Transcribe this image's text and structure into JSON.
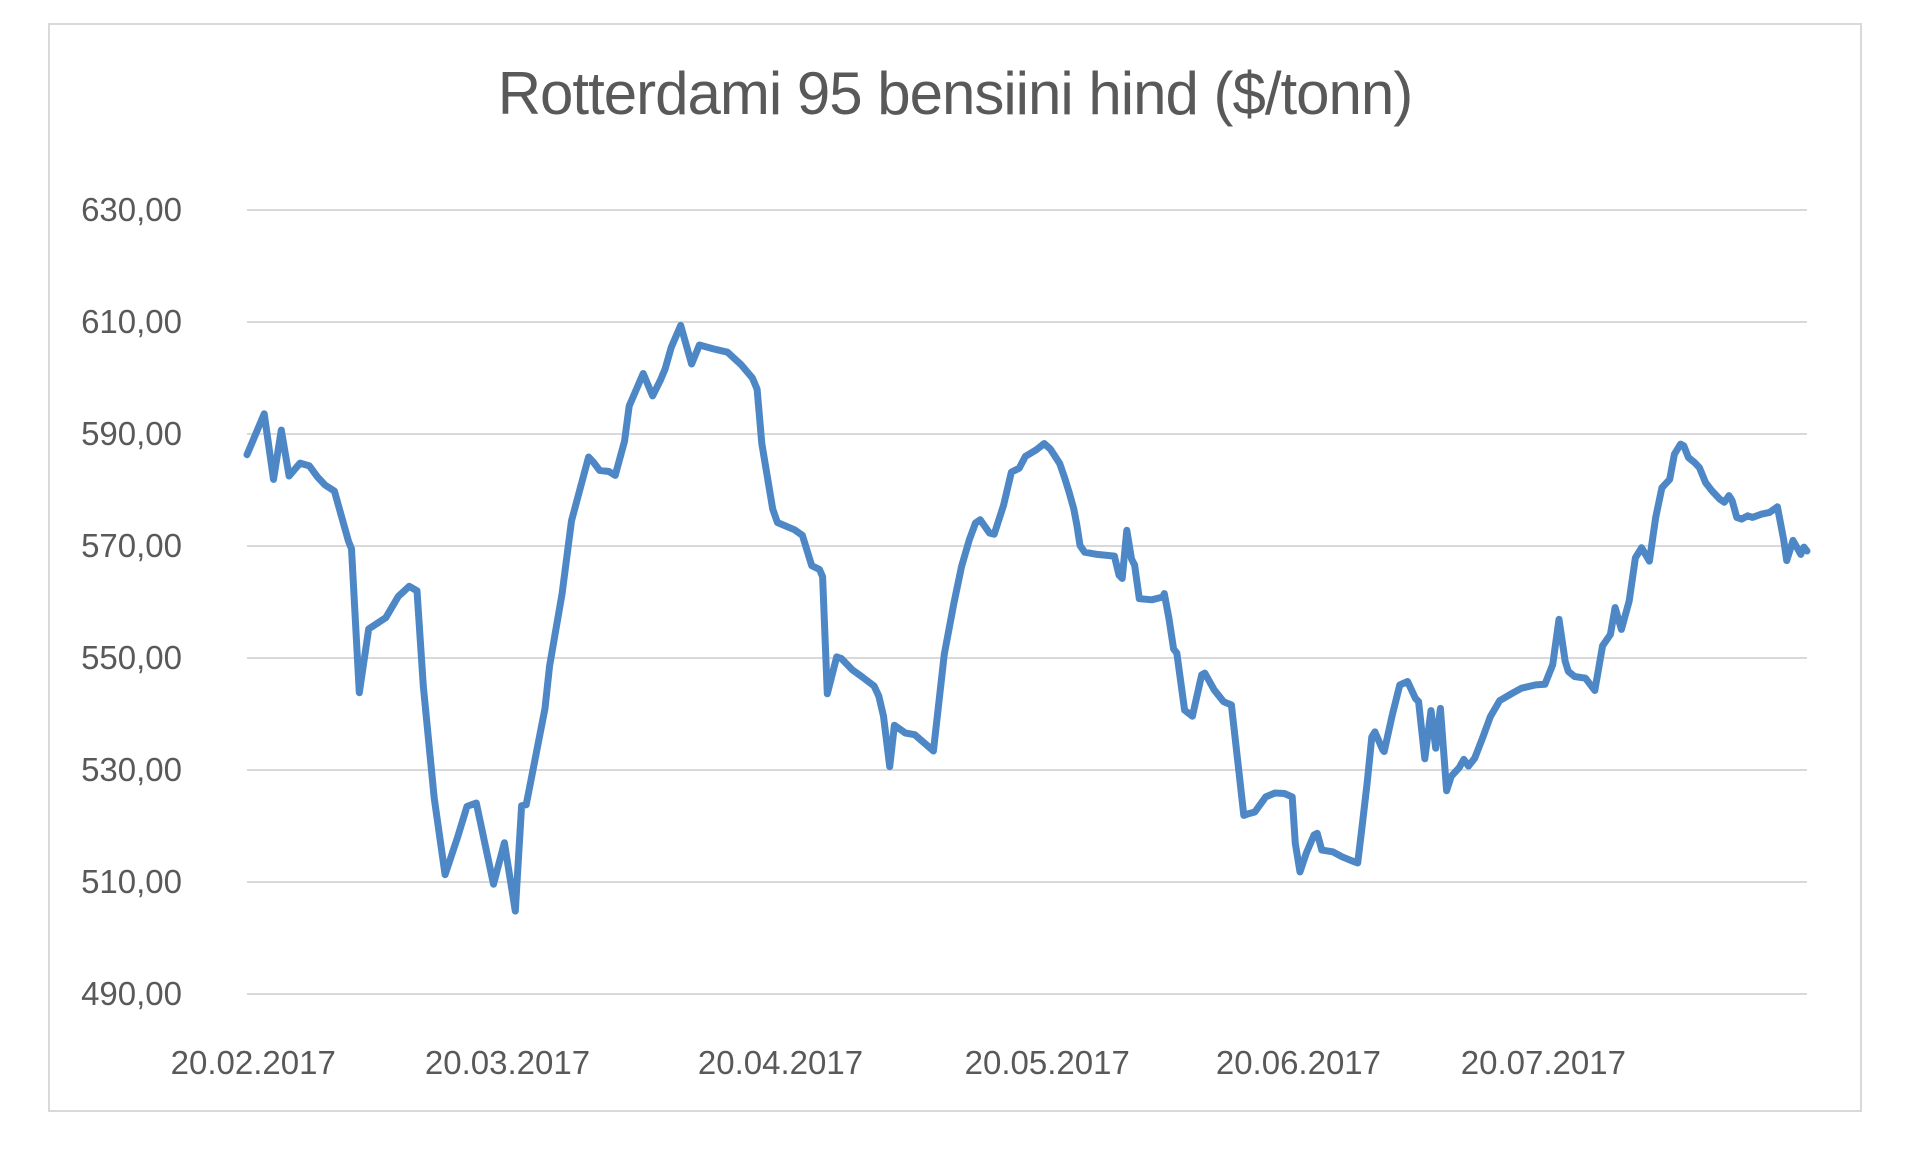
{
  "chart_data": {
    "type": "line",
    "title": "Rotterdami 95 bensiini hind ($/tonn)",
    "xlabel": "",
    "ylabel": "",
    "ylim": [
      490,
      630
    ],
    "y_tick_step": 20,
    "grid": true,
    "legend_position": "none",
    "colors": {
      "series": "#4e87c6",
      "gridline": "#d9d9d9",
      "frame_border": "#d9d9d9",
      "text": "#595959",
      "background": "#ffffff"
    },
    "y_ticks": [
      {
        "value": 630,
        "label": "630,00"
      },
      {
        "value": 610,
        "label": "610,00"
      },
      {
        "value": 590,
        "label": "590,00"
      },
      {
        "value": 570,
        "label": "570,00"
      },
      {
        "value": 550,
        "label": "550,00"
      },
      {
        "value": 530,
        "label": "530,00"
      },
      {
        "value": 510,
        "label": "510,00"
      },
      {
        "value": 490,
        "label": "490,00"
      }
    ],
    "x_ticks": [
      {
        "label": "20.02.2017",
        "pos": 0.004
      },
      {
        "label": "20.03.2017",
        "pos": 0.167
      },
      {
        "label": "20.04.2017",
        "pos": 0.342
      },
      {
        "label": "20.05.2017",
        "pos": 0.513
      },
      {
        "label": "20.06.2017",
        "pos": 0.674
      },
      {
        "label": "20.07.2017",
        "pos": 0.831
      }
    ],
    "series": [
      {
        "name": "Rotterdami 95 bensiini hind ($/tonn)",
        "points_format": "[position along x-axis 0..1, price $/tonn]",
        "points": [
          [
            0.0,
            586.3
          ],
          [
            0.011,
            593.6
          ],
          [
            0.017,
            581.9
          ],
          [
            0.022,
            590.7
          ],
          [
            0.027,
            582.5
          ],
          [
            0.034,
            584.8
          ],
          [
            0.04,
            584.3
          ],
          [
            0.045,
            582.4
          ],
          [
            0.05,
            580.9
          ],
          [
            0.056,
            579.8
          ],
          [
            0.065,
            570.9
          ],
          [
            0.067,
            569.5
          ],
          [
            0.072,
            543.8
          ],
          [
            0.078,
            555.2
          ],
          [
            0.089,
            557.2
          ],
          [
            0.097,
            561.0
          ],
          [
            0.104,
            562.8
          ],
          [
            0.109,
            562.0
          ],
          [
            0.113,
            545.0
          ],
          [
            0.12,
            525.0
          ],
          [
            0.127,
            511.3
          ],
          [
            0.135,
            518.0
          ],
          [
            0.141,
            523.5
          ],
          [
            0.147,
            524.1
          ],
          [
            0.158,
            509.6
          ],
          [
            0.165,
            517.0
          ],
          [
            0.172,
            504.8
          ],
          [
            0.176,
            523.6
          ],
          [
            0.179,
            523.8
          ],
          [
            0.191,
            541.0
          ],
          [
            0.194,
            548.6
          ],
          [
            0.202,
            561.5
          ],
          [
            0.208,
            574.5
          ],
          [
            0.219,
            585.9
          ],
          [
            0.222,
            585.0
          ],
          [
            0.226,
            583.5
          ],
          [
            0.232,
            583.3
          ],
          [
            0.236,
            582.6
          ],
          [
            0.242,
            588.7
          ],
          [
            0.245,
            595.0
          ],
          [
            0.254,
            600.8
          ],
          [
            0.26,
            596.8
          ],
          [
            0.265,
            599.6
          ],
          [
            0.268,
            601.6
          ],
          [
            0.272,
            605.5
          ],
          [
            0.278,
            609.4
          ],
          [
            0.285,
            602.5
          ],
          [
            0.29,
            605.9
          ],
          [
            0.299,
            605.2
          ],
          [
            0.308,
            604.6
          ],
          [
            0.317,
            602.3
          ],
          [
            0.324,
            600.0
          ],
          [
            0.327,
            598.0
          ],
          [
            0.33,
            588.3
          ],
          [
            0.337,
            576.6
          ],
          [
            0.34,
            574.2
          ],
          [
            0.351,
            572.9
          ],
          [
            0.356,
            571.9
          ],
          [
            0.362,
            566.5
          ],
          [
            0.367,
            565.8
          ],
          [
            0.369,
            564.5
          ],
          [
            0.372,
            543.6
          ],
          [
            0.378,
            550.2
          ],
          [
            0.381,
            549.9
          ],
          [
            0.388,
            547.9
          ],
          [
            0.394,
            546.7
          ],
          [
            0.402,
            545.0
          ],
          [
            0.405,
            543.2
          ],
          [
            0.408,
            539.6
          ],
          [
            0.412,
            530.6
          ],
          [
            0.415,
            538.0
          ],
          [
            0.422,
            536.6
          ],
          [
            0.428,
            536.3
          ],
          [
            0.438,
            533.9
          ],
          [
            0.44,
            533.4
          ],
          [
            0.447,
            550.7
          ],
          [
            0.453,
            559.6
          ],
          [
            0.458,
            566.3
          ],
          [
            0.463,
            571.1
          ],
          [
            0.467,
            574.1
          ],
          [
            0.47,
            574.7
          ],
          [
            0.476,
            572.3
          ],
          [
            0.479,
            572.1
          ],
          [
            0.485,
            577.3
          ],
          [
            0.49,
            583.2
          ],
          [
            0.495,
            583.9
          ],
          [
            0.499,
            586.0
          ],
          [
            0.506,
            587.2
          ],
          [
            0.511,
            588.3
          ],
          [
            0.515,
            587.3
          ],
          [
            0.521,
            584.7
          ],
          [
            0.524,
            582.3
          ],
          [
            0.527,
            579.6
          ],
          [
            0.53,
            576.6
          ],
          [
            0.532,
            573.7
          ],
          [
            0.534,
            570.1
          ],
          [
            0.537,
            568.9
          ],
          [
            0.545,
            568.5
          ],
          [
            0.556,
            568.2
          ],
          [
            0.559,
            564.8
          ],
          [
            0.561,
            564.2
          ],
          [
            0.564,
            572.8
          ],
          [
            0.567,
            567.7
          ],
          [
            0.569,
            566.6
          ],
          [
            0.572,
            560.6
          ],
          [
            0.58,
            560.4
          ],
          [
            0.587,
            560.9
          ],
          [
            0.588,
            561.5
          ],
          [
            0.591,
            557.0
          ],
          [
            0.594,
            551.6
          ],
          [
            0.596,
            550.9
          ],
          [
            0.601,
            540.7
          ],
          [
            0.606,
            539.6
          ],
          [
            0.612,
            547.0
          ],
          [
            0.614,
            547.3
          ],
          [
            0.62,
            544.3
          ],
          [
            0.626,
            542.2
          ],
          [
            0.631,
            541.6
          ],
          [
            0.635,
            531.8
          ],
          [
            0.639,
            521.9
          ],
          [
            0.642,
            522.2
          ],
          [
            0.646,
            522.5
          ],
          [
            0.653,
            525.2
          ],
          [
            0.659,
            525.9
          ],
          [
            0.665,
            525.8
          ],
          [
            0.67,
            525.2
          ],
          [
            0.672,
            516.9
          ],
          [
            0.675,
            511.8
          ],
          [
            0.679,
            515.1
          ],
          [
            0.684,
            518.4
          ],
          [
            0.686,
            518.7
          ],
          [
            0.689,
            515.7
          ],
          [
            0.696,
            515.4
          ],
          [
            0.702,
            514.5
          ],
          [
            0.708,
            513.8
          ],
          [
            0.712,
            513.4
          ],
          [
            0.715,
            520.4
          ],
          [
            0.718,
            527.6
          ],
          [
            0.721,
            535.9
          ],
          [
            0.723,
            536.8
          ],
          [
            0.728,
            533.6
          ],
          [
            0.729,
            533.3
          ],
          [
            0.734,
            539.6
          ],
          [
            0.739,
            545.2
          ],
          [
            0.744,
            545.8
          ],
          [
            0.749,
            542.8
          ],
          [
            0.751,
            542.2
          ],
          [
            0.755,
            532.0
          ],
          [
            0.759,
            540.6
          ],
          [
            0.762,
            533.9
          ],
          [
            0.765,
            541.0
          ],
          [
            0.769,
            526.3
          ],
          [
            0.772,
            528.9
          ],
          [
            0.777,
            530.4
          ],
          [
            0.78,
            531.9
          ],
          [
            0.783,
            530.7
          ],
          [
            0.787,
            532.1
          ],
          [
            0.792,
            535.7
          ],
          [
            0.797,
            539.5
          ],
          [
            0.803,
            542.4
          ],
          [
            0.811,
            543.7
          ],
          [
            0.817,
            544.6
          ],
          [
            0.826,
            545.2
          ],
          [
            0.832,
            545.3
          ],
          [
            0.837,
            548.8
          ],
          [
            0.841,
            556.9
          ],
          [
            0.845,
            549.4
          ],
          [
            0.847,
            547.6
          ],
          [
            0.851,
            546.7
          ],
          [
            0.858,
            546.4
          ],
          [
            0.864,
            544.2
          ],
          [
            0.869,
            552.2
          ],
          [
            0.874,
            554.2
          ],
          [
            0.877,
            559.0
          ],
          [
            0.881,
            555.1
          ],
          [
            0.886,
            560.2
          ],
          [
            0.89,
            567.9
          ],
          [
            0.894,
            569.7
          ],
          [
            0.899,
            567.3
          ],
          [
            0.903,
            575.1
          ],
          [
            0.907,
            580.4
          ],
          [
            0.912,
            581.9
          ],
          [
            0.915,
            586.4
          ],
          [
            0.919,
            588.2
          ],
          [
            0.921,
            587.9
          ],
          [
            0.924,
            585.8
          ],
          [
            0.928,
            584.9
          ],
          [
            0.931,
            584.0
          ],
          [
            0.935,
            581.3
          ],
          [
            0.939,
            579.9
          ],
          [
            0.944,
            578.4
          ],
          [
            0.947,
            577.8
          ],
          [
            0.95,
            579.0
          ],
          [
            0.952,
            578.1
          ],
          [
            0.955,
            575.1
          ],
          [
            0.958,
            574.8
          ],
          [
            0.962,
            575.4
          ],
          [
            0.965,
            575.1
          ],
          [
            0.971,
            575.7
          ],
          [
            0.976,
            576.0
          ],
          [
            0.981,
            577.0
          ],
          [
            0.985,
            571.2
          ],
          [
            0.987,
            567.4
          ],
          [
            0.991,
            571.0
          ],
          [
            0.996,
            568.5
          ],
          [
            0.998,
            569.8
          ],
          [
            1.0,
            569.1
          ]
        ]
      }
    ]
  }
}
